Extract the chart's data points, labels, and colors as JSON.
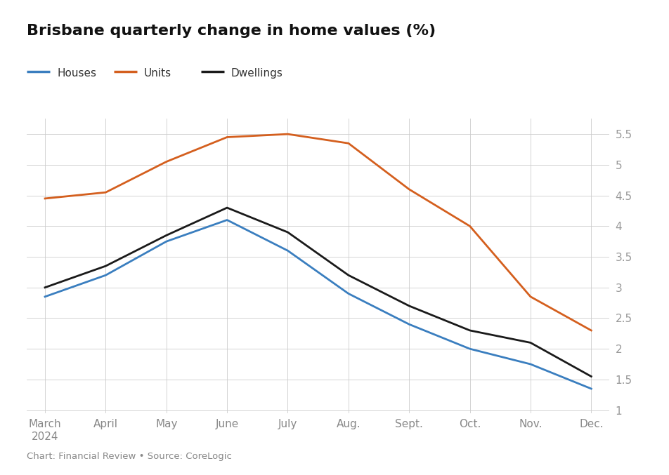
{
  "title": "Brisbane quarterly change in home values (%)",
  "title_fontsize": 16,
  "title_fontweight": "bold",
  "source_text": "Chart: Financial Review • Source: CoreLogic",
  "months": [
    "March\n2024",
    "April",
    "May",
    "June",
    "July",
    "Aug.",
    "Sept.",
    "Oct.",
    "Nov.",
    "Dec."
  ],
  "month_ticks": [
    0,
    1,
    2,
    3,
    4,
    5,
    6,
    7,
    8,
    9
  ],
  "houses": [
    2.85,
    3.2,
    3.75,
    4.1,
    3.6,
    2.9,
    2.4,
    2.0,
    1.75,
    1.35
  ],
  "units": [
    4.45,
    4.55,
    5.05,
    5.45,
    5.5,
    5.35,
    4.6,
    4.0,
    2.85,
    2.3
  ],
  "dwellings": [
    3.0,
    3.35,
    3.85,
    4.3,
    3.9,
    3.2,
    2.7,
    2.3,
    2.1,
    1.55
  ],
  "houses_color": "#3a7ebf",
  "units_color": "#d45f1e",
  "dwellings_color": "#1a1a1a",
  "line_width": 2.0,
  "ylim": [
    0.95,
    5.75
  ],
  "ytick_values": [
    1.0,
    1.5,
    2.0,
    2.5,
    3.0,
    3.5,
    4.0,
    4.5,
    5.0,
    5.5
  ],
  "ytick_labels": [
    "1",
    "1.5",
    "2",
    "2.5",
    "3",
    "3.5",
    "4",
    "4.5",
    "5",
    "5.5"
  ],
  "background_color": "#ffffff",
  "grid_color": "#cccccc",
  "legend_labels": [
    "Houses",
    "Units",
    "Dwellings"
  ],
  "legend_colors": [
    "#3a7ebf",
    "#d45f1e",
    "#1a1a1a"
  ]
}
